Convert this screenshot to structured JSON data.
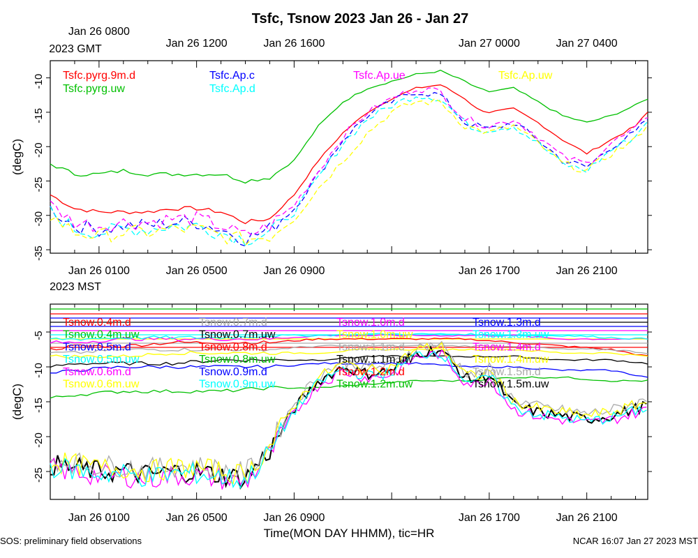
{
  "footer": {
    "left": "SOS: preliminary field observations",
    "right": "NCAR 16:07 Jan 27 2023 MST"
  },
  "chart_data": {
    "type": "line",
    "title": "Tsfc, Tsnow 2023 Jan 26 - Jan 27",
    "xlabel": "Time(MON DAY HHMM), tic=HR",
    "x_hours": "hours since Jan 26 0000 MST",
    "xlim": [
      -1,
      23.5
    ],
    "gmt_labels": [
      {
        "h": 1,
        "text": "Jan 26 0800"
      },
      {
        "h": 5,
        "text": "Jan 26 1200"
      },
      {
        "h": 9,
        "text": "Jan 26 1600"
      },
      {
        "h": 17,
        "text": "Jan 27 0000"
      },
      {
        "h": 21,
        "text": "Jan 27 0400"
      }
    ],
    "gmt_zone": "2023 GMT",
    "mst_labels": [
      {
        "h": 1,
        "text": "Jan 26 0100"
      },
      {
        "h": 5,
        "text": "Jan 26 0500"
      },
      {
        "h": 9,
        "text": "Jan 26 0900"
      },
      {
        "h": 17,
        "text": "Jan 26 1700"
      },
      {
        "h": 21,
        "text": "Jan 26 2100"
      }
    ],
    "mst_zone": "2023 MST",
    "panels": [
      {
        "name": "tsfc",
        "ylabel": "(degC)",
        "ylim": [
          -35.5,
          -7.5
        ],
        "yticks": [
          -35,
          -30,
          -25,
          -20,
          -15,
          -10
        ],
        "series": [
          {
            "name": "Tsfc.pyrg.9m.d",
            "color": "#ff0000",
            "dash": false,
            "x": [
              -1,
              0,
              1,
              2,
              3,
              4,
              5,
              6,
              7,
              8,
              9,
              10,
              11,
              12,
              13,
              14,
              15,
              16,
              16.5,
              17,
              18,
              19,
              20,
              21,
              22,
              23,
              23.5
            ],
            "y": [
              -27,
              -29,
              -29.5,
              -29.5,
              -29.5,
              -29,
              -29,
              -29.5,
              -31,
              -30.5,
              -27,
              -22,
              -18,
              -15,
              -13,
              -11.5,
              -11,
              -13,
              -14.5,
              -15,
              -14.5,
              -16.5,
              -19,
              -21,
              -19,
              -17,
              -15
            ]
          },
          {
            "name": "Tsfc.pyrg.uw",
            "color": "#00c000",
            "dash": false,
            "x": [
              -1,
              0,
              1,
              2,
              3,
              4,
              5,
              6,
              7,
              8,
              9,
              10,
              11,
              12,
              13,
              14,
              15,
              16,
              16.5,
              17,
              18,
              19,
              20,
              21,
              22,
              23,
              23.5
            ],
            "y": [
              -22.5,
              -24,
              -24,
              -23.5,
              -24,
              -24,
              -24,
              -24,
              -25,
              -24.5,
              -22,
              -17,
              -13.5,
              -11.5,
              -10.5,
              -9.5,
              -9,
              -10.5,
              -11.5,
              -12,
              -11.5,
              -13.5,
              -15.5,
              -16.5,
              -15.5,
              -14,
              -13
            ]
          },
          {
            "name": "Tsfc.Ap.c",
            "color": "#0000ff",
            "dash": true,
            "x": [
              -1,
              0,
              1,
              2,
              3,
              4,
              5,
              6,
              7,
              8,
              9,
              10,
              11,
              12,
              13,
              14,
              15,
              16,
              16.5,
              17,
              18,
              19,
              20,
              21,
              22,
              23,
              23.5
            ],
            "y": [
              -29,
              -31.5,
              -32,
              -31.5,
              -31.5,
              -31,
              -31,
              -32,
              -33.5,
              -32,
              -29,
              -24,
              -19,
              -15.5,
              -13.5,
              -12,
              -12.5,
              -16.5,
              -17,
              -17.5,
              -16.5,
              -19,
              -22,
              -23,
              -20,
              -18,
              -16
            ]
          },
          {
            "name": "Tsfc.Ap.d",
            "color": "#00ffff",
            "dash": true,
            "x": [
              -1,
              0,
              1,
              2,
              3,
              4,
              5,
              6,
              7,
              8,
              9,
              10,
              11,
              12,
              13,
              14,
              15,
              16,
              16.5,
              17,
              18,
              19,
              20,
              21,
              22,
              23,
              23.5
            ],
            "y": [
              -29.5,
              -32,
              -32.5,
              -32,
              -32,
              -31.5,
              -31.5,
              -32.5,
              -33.5,
              -32.5,
              -29.5,
              -24.5,
              -19.5,
              -16,
              -14,
              -12.5,
              -13,
              -16.5,
              -17.5,
              -17.5,
              -17,
              -19.5,
              -22.5,
              -23.5,
              -20.5,
              -18.5,
              -16
            ]
          },
          {
            "name": "Tsfc.Ap.ue",
            "color": "#ff00ff",
            "dash": true,
            "x": [
              -1,
              0,
              1,
              2,
              3,
              4,
              5,
              6,
              7,
              8,
              9,
              10,
              11,
              12,
              13,
              14,
              15,
              16,
              16.5,
              17,
              18,
              19,
              20,
              21,
              22,
              23,
              23.5
            ],
            "y": [
              -28.5,
              -31,
              -31.5,
              -31,
              -31,
              -30.5,
              -30.5,
              -31.5,
              -33,
              -31.5,
              -28.5,
              -23.5,
              -18.5,
              -15,
              -13,
              -11.5,
              -12,
              -16,
              -16.5,
              -17,
              -16,
              -18.5,
              -21.5,
              -22.5,
              -19.5,
              -17.5,
              -15.5
            ]
          },
          {
            "name": "Tsfc.Ap.uw",
            "color": "#ffff00",
            "dash": true,
            "x": [
              -1,
              0,
              1,
              2,
              3,
              4,
              5,
              6,
              7,
              8,
              9,
              10,
              11,
              12,
              13,
              14,
              15,
              16,
              16.5,
              17,
              18,
              19,
              20,
              21,
              22,
              23,
              23.5
            ],
            "y": [
              -30,
              -32.5,
              -33,
              -32.5,
              -32.5,
              -32,
              -32,
              -33,
              -33.5,
              -33,
              -30.5,
              -26,
              -22,
              -18,
              -15,
              -13.5,
              -13.5,
              -17,
              -17.5,
              -18,
              -17,
              -19.5,
              -22.5,
              -23.5,
              -21,
              -19,
              -16.5
            ]
          }
        ],
        "legend": [
          {
            "name": "Tsfc.pyrg.9m.d",
            "color": "#ff0000",
            "col": 0,
            "row": 0
          },
          {
            "name": "Tsfc.pyrg.uw",
            "color": "#00c000",
            "col": 0,
            "row": 1
          },
          {
            "name": "Tsfc.Ap.c",
            "color": "#0000ff",
            "col": 1,
            "row": 0
          },
          {
            "name": "Tsfc.Ap.d",
            "color": "#00ffff",
            "col": 1,
            "row": 1
          },
          {
            "name": "Tsfc.Ap.ue",
            "color": "#ff00ff",
            "col": 2,
            "row": 0
          },
          {
            "name": "Tsfc.Ap.uw",
            "color": "#ffff00",
            "col": 3,
            "row": 0
          }
        ]
      },
      {
        "name": "tsnow",
        "ylabel": "(degC)",
        "ylim": [
          -29,
          -1
        ]
      }
    ],
    "snow_flat_series": [
      {
        "name": "Tsnow.1.5m.d",
        "color": "#00c000",
        "y": -1.7
      },
      {
        "name": "Tsnow.1.4m.d",
        "color": "#ff0000",
        "y": -2.4
      },
      {
        "name": "Tsnow.1.3m.d",
        "color": "#0000ff",
        "y": -3.0
      },
      {
        "name": "Tsnow.1.2m.d",
        "color": "#000000",
        "y": -3.6
      },
      {
        "name": "Tsnow.1.1m.d",
        "color": "#0000ff",
        "y": -4.2
      },
      {
        "name": "Tsnow.1.0m.d",
        "color": "#ff00ff",
        "y": -4.8
      },
      {
        "name": "Tsnow.0.9m.d",
        "color": "#00ffff",
        "y": -5.4
      },
      {
        "name": "Tsnow.0.8m.d",
        "color": "#ffff00",
        "y": -6.0
      },
      {
        "name": "Tsnow.0.7m.d",
        "color": "#aaaaaa",
        "y": -6.6
      },
      {
        "name": "Tsnow.0.6m.d",
        "color": "#ff0000",
        "y": -7.2
      }
    ],
    "snow_trend_series": [
      {
        "name": "Tsnow.0.5m.d",
        "color": "#ff0000",
        "x": [
          -1,
          0,
          2,
          4,
          6,
          8,
          10,
          12,
          14,
          16,
          18,
          20,
          22,
          23.5
        ],
        "y": [
          -7.5,
          -7,
          -7,
          -6.5,
          -6.5,
          -6.5,
          -6,
          -6,
          -6,
          -6,
          -6.5,
          -7,
          -7.5,
          -8.5
        ]
      },
      {
        "name": "Tsnow.0.8m.uw",
        "color": "#000000",
        "x": [
          -1,
          0,
          2,
          4,
          6,
          8,
          10,
          12,
          14,
          16,
          18,
          20,
          22,
          23.5
        ],
        "y": [
          -10,
          -9.5,
          -9.5,
          -9.5,
          -9,
          -9,
          -9,
          -8.5,
          -8.5,
          -8.5,
          -8.5,
          -9,
          -9,
          -9.5
        ]
      },
      {
        "name": "Tsnow.0.6m.d",
        "color": "#0000ff",
        "x": [
          -1,
          0,
          2,
          4,
          6,
          8,
          10,
          12,
          14,
          16,
          18,
          20,
          22,
          23.5
        ],
        "y": [
          -11,
          -10.5,
          -10,
          -10,
          -10,
          -10,
          -9.5,
          -9.5,
          -9.5,
          -10,
          -10,
          -10.5,
          -10.5,
          -11.5
        ]
      },
      {
        "name": "Tsnow.0.4m.uw",
        "color": "#00c000",
        "x": [
          -1,
          0,
          2,
          4,
          6,
          8,
          10,
          12,
          14,
          16,
          18,
          20,
          22,
          23.5
        ],
        "y": [
          -14.5,
          -14,
          -13.5,
          -13.5,
          -13.5,
          -13,
          -13,
          -12.5,
          -12,
          -12,
          -11.5,
          -11.5,
          -12,
          -12
        ]
      },
      {
        "name": "Tsnow.0.5m.uw",
        "color": "#aaaaaa",
        "x": [
          -1,
          0,
          2,
          4,
          6,
          8,
          10,
          12,
          14,
          16,
          18,
          20,
          22,
          23.5
        ],
        "y": [
          -8,
          -8,
          -7.5,
          -7.5,
          -7.5,
          -7.5,
          -7,
          -7,
          -7,
          -7,
          -7,
          -7.5,
          -7.5,
          -8
        ]
      },
      {
        "name": "Tsnow.0.3m.d",
        "color": "#ffff00",
        "x": [
          -1,
          0,
          2,
          4,
          6,
          8,
          10,
          12,
          14,
          16,
          18,
          20,
          22,
          23.5
        ],
        "y": [
          -8.5,
          -8.5,
          -8.5,
          -8,
          -8,
          -8,
          -8,
          -7.5,
          -7.5,
          -7.5,
          -7.5,
          -8,
          -8,
          -8.5
        ]
      },
      {
        "name": "Tsnow.0.2m.d",
        "color": "#ff00ff",
        "x": [
          -1,
          0,
          2,
          4,
          6,
          8,
          10,
          12,
          14,
          16,
          18,
          20,
          22,
          23.5
        ],
        "y": [
          -6.5,
          -6.5,
          -6,
          -6,
          -6,
          -6,
          -5.5,
          -5.5,
          -5.5,
          -5.5,
          -5.5,
          -6,
          -6,
          -6
        ]
      },
      {
        "name": "Tsnow.0.1m.d",
        "color": "#00ffff",
        "x": [
          -1,
          0,
          2,
          4,
          6,
          8,
          10,
          12,
          14,
          16,
          18,
          20,
          22,
          23.5
        ],
        "y": [
          -6,
          -6,
          -5.8,
          -5.8,
          -5.8,
          -5.5,
          -5.5,
          -5.3,
          -5.3,
          -5.3,
          -5.5,
          -5.5,
          -5.8,
          -6
        ]
      }
    ],
    "snow_surface_series": [
      {
        "name": "Tsnow.0.4m.d",
        "color": "#000000",
        "off": 0
      },
      {
        "name": "Tsnow.0.5m.d",
        "color": "#ff00ff",
        "off": -0.6
      },
      {
        "name": "Tsnow.0.6m.d",
        "color": "#aaaaaa",
        "off": 0.8
      },
      {
        "name": "Tsnow.0.7m.d",
        "color": "#ffff00",
        "off": 0.5
      },
      {
        "name": "Tsnow.0.5m.uw",
        "color": "#00ffff",
        "off": -0.3
      }
    ],
    "snow_surface_base": {
      "x": [
        -1,
        0,
        1,
        2,
        3,
        4,
        5,
        6,
        7,
        8,
        9,
        10,
        11,
        12,
        13,
        14,
        15,
        16,
        16.5,
        17,
        18,
        19,
        20,
        21,
        22,
        23,
        23.5
      ],
      "y": [
        -24,
        -24.5,
        -25,
        -25,
        -25.5,
        -25,
        -25,
        -25.5,
        -26,
        -22,
        -16,
        -12,
        -10,
        -11,
        -10.5,
        -8,
        -7.5,
        -11.5,
        -12,
        -11,
        -15.5,
        -16.5,
        -17,
        -17.5,
        -17,
        -16,
        -15.5
      ]
    },
    "snow_legend": [
      {
        "name": "Tsnow.0.4m.d",
        "color": "#ff0000",
        "col": 0,
        "row": 0
      },
      {
        "name": "Tsnow.0.4m.uw",
        "color": "#00c000",
        "col": 0,
        "row": 1
      },
      {
        "name": "Tsnow.0.5m.d",
        "color": "#0000ff",
        "col": 0,
        "row": 2
      },
      {
        "name": "Tsnow.0.5m.uw",
        "color": "#00ffff",
        "col": 0,
        "row": 3
      },
      {
        "name": "Tsnow.0.6m.d",
        "color": "#ff00ff",
        "col": 0,
        "row": 4
      },
      {
        "name": "Tsnow.0.6m.uw",
        "color": "#ffff00",
        "col": 0,
        "row": 5
      },
      {
        "name": "Tsnow.0.7m.d",
        "color": "#aaaaaa",
        "col": 1,
        "row": 0
      },
      {
        "name": "Tsnow.0.7m.uw",
        "color": "#000000",
        "col": 1,
        "row": 1
      },
      {
        "name": "Tsnow.0.8m.d",
        "color": "#ff0000",
        "col": 1,
        "row": 2
      },
      {
        "name": "Tsnow.0.8m.uw",
        "color": "#00c000",
        "col": 1,
        "row": 3
      },
      {
        "name": "Tsnow.0.9m.d",
        "color": "#0000ff",
        "col": 1,
        "row": 4
      },
      {
        "name": "Tsnow.0.9m.uw",
        "color": "#00ffff",
        "col": 1,
        "row": 5
      },
      {
        "name": "Tsnow.1.0m.d",
        "color": "#ff00ff",
        "col": 2,
        "row": 0
      },
      {
        "name": "Tsnow.1.0m.uw",
        "color": "#ffff00",
        "col": 2,
        "row": 1
      },
      {
        "name": "Tsnow.1.1m.d",
        "color": "#aaaaaa",
        "col": 2,
        "row": 2
      },
      {
        "name": "Tsnow.1.1m.uw",
        "color": "#000000",
        "col": 2,
        "row": 3
      },
      {
        "name": "Tsnow.1.2m.d",
        "color": "#ff0000",
        "col": 2,
        "row": 4
      },
      {
        "name": "Tsnow.1.2m.uw",
        "color": "#00c000",
        "col": 2,
        "row": 5
      },
      {
        "name": "Tsnow.1.3m.d",
        "color": "#0000ff",
        "col": 3,
        "row": 0
      },
      {
        "name": "Tsnow.1.3m.uw",
        "color": "#00ffff",
        "col": 3,
        "row": 1
      },
      {
        "name": "Tsnow.1.4m.d",
        "color": "#ff00ff",
        "col": 3,
        "row": 2
      },
      {
        "name": "Tsnow.1.4m.uw",
        "color": "#ffff00",
        "col": 3,
        "row": 3
      },
      {
        "name": "Tsnow.1.5m.d",
        "color": "#aaaaaa",
        "col": 3,
        "row": 4
      },
      {
        "name": "Tsnow.1.5m.uw",
        "color": "#000000",
        "col": 3,
        "row": 5
      }
    ],
    "snow_yticks": [
      -25,
      -20,
      -15,
      -10,
      -5
    ]
  }
}
